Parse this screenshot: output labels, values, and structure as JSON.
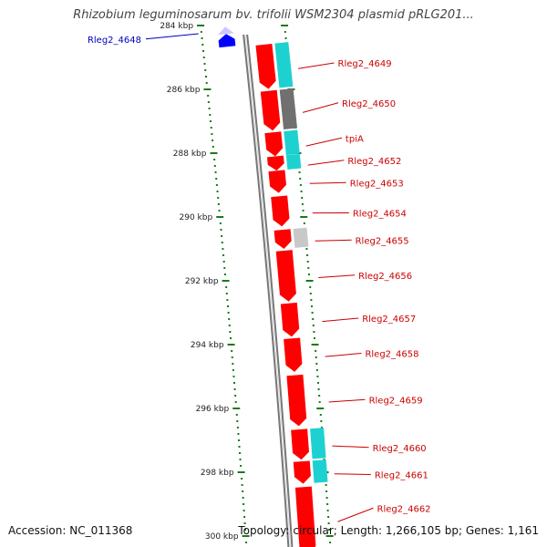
{
  "title": "Rhizobium leguminosarum bv. trifolii WSM2304 plasmid pRLG201...",
  "accession": "Accession: NC_011368",
  "topology": "Topology: circular; Length: 1,266,105 bp; Genes: 1,161",
  "colors": {
    "label_red": "#cc0000",
    "label_blue": "#0000bb",
    "gene_red": "#ff0000",
    "cog_cyan": "#1ed1d1",
    "cog_dark": "#707070",
    "cog_light": "#c8c8c8",
    "tick_green": "#1a7a1a",
    "backbone": "#777777",
    "selected_blue": "#0000ff"
  },
  "scale_labels": [
    "284 kbp",
    "286 kbp",
    "288 kbp",
    "290 kbp",
    "292 kbp",
    "294 kbp",
    "296 kbp",
    "298 kbp",
    "300 kbp"
  ],
  "genes": [
    {
      "name": "Rleg2_4648",
      "start": 284.2,
      "end": 284.6,
      "strand": "rev",
      "color": "selected_blue",
      "label_color": "label_blue",
      "cog": null
    },
    {
      "name": "Rleg2_4649",
      "start": 284.65,
      "end": 286.05,
      "strand": "fwd",
      "color": "gene_red",
      "label_color": "label_red",
      "cog": "cog_cyan"
    },
    {
      "name": "Rleg2_4650",
      "start": 286.1,
      "end": 287.35,
      "strand": "fwd",
      "color": "gene_red",
      "label_color": "label_red",
      "cog": "cog_dark"
    },
    {
      "name": "tpiA",
      "start": 287.4,
      "end": 288.15,
      "strand": "fwd",
      "color": "gene_red",
      "label_color": "label_red",
      "cog": "cog_cyan"
    },
    {
      "name": "Rleg2_4652",
      "start": 288.15,
      "end": 288.6,
      "strand": "fwd",
      "color": "gene_red",
      "label_color": "label_red",
      "cog": "cog_cyan"
    },
    {
      "name": "Rleg2_4653",
      "start": 288.6,
      "end": 289.3,
      "strand": "fwd",
      "color": "gene_red",
      "label_color": "label_red",
      "cog": null
    },
    {
      "name": "Rleg2_4654",
      "start": 289.4,
      "end": 290.35,
      "strand": "fwd",
      "color": "gene_red",
      "label_color": "label_red",
      "cog": null
    },
    {
      "name": "Rleg2_4655",
      "start": 290.45,
      "end": 291.05,
      "strand": "fwd",
      "color": "gene_red",
      "label_color": "label_red",
      "cog": "cog_light"
    },
    {
      "name": "Rleg2_4656",
      "start": 291.1,
      "end": 292.7,
      "strand": "fwd",
      "color": "gene_red",
      "label_color": "label_red",
      "cog": null
    },
    {
      "name": "Rleg2_4657",
      "start": 292.75,
      "end": 293.8,
      "strand": "fwd",
      "color": "gene_red",
      "label_color": "label_red",
      "cog": null
    },
    {
      "name": "Rleg2_4658",
      "start": 293.85,
      "end": 294.9,
      "strand": "fwd",
      "color": "gene_red",
      "label_color": "label_red",
      "cog": null
    },
    {
      "name": "Rleg2_4659",
      "start": 295.0,
      "end": 296.6,
      "strand": "fwd",
      "color": "gene_red",
      "label_color": "label_red",
      "cog": null
    },
    {
      "name": "Rleg2_4660",
      "start": 296.7,
      "end": 297.65,
      "strand": "fwd",
      "color": "gene_red",
      "label_color": "label_red",
      "cog": "cog_cyan"
    },
    {
      "name": "Rleg2_4661",
      "start": 297.7,
      "end": 298.4,
      "strand": "fwd",
      "color": "gene_red",
      "label_color": "label_red",
      "cog": "cog_cyan"
    },
    {
      "name": "Rleg2_4662",
      "start": 298.5,
      "end": 300.6,
      "strand": "fwd",
      "color": "gene_red",
      "label_color": "label_red",
      "cog": null
    }
  ],
  "label_positions_kbp": [
    284.45,
    285.2,
    286.45,
    287.55,
    288.25,
    288.95,
    289.9,
    290.75,
    291.85,
    293.2,
    294.3,
    295.75,
    297.25,
    298.1,
    299.15
  ]
}
